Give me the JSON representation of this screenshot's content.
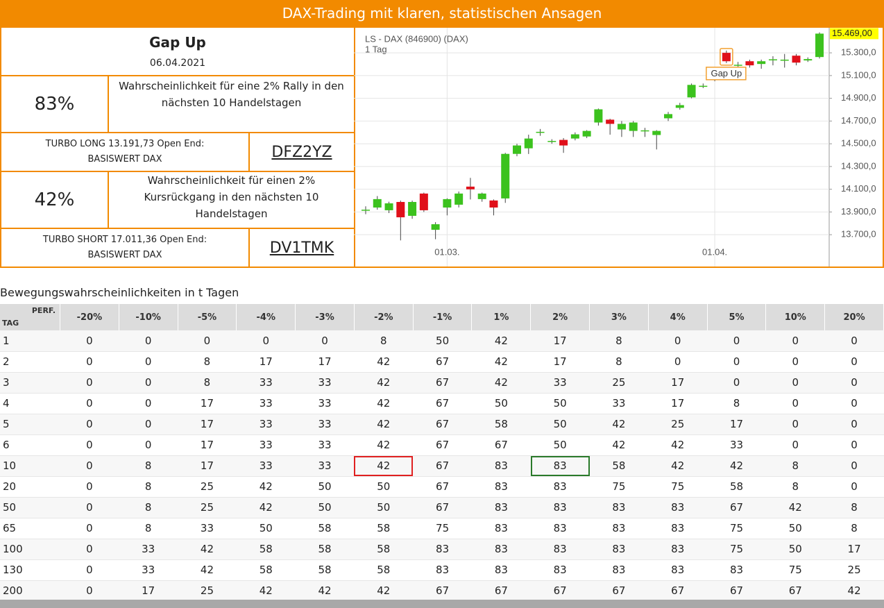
{
  "header": {
    "title": "DAX-Trading mit klaren, statistischen Ansagen"
  },
  "signal": {
    "title": "Gap Up",
    "date": "06.04.2021"
  },
  "long": {
    "percent": "83%",
    "text": "Wahrscheinlichkeit für eine 2% Rally in den nächsten 10 Handelstagen",
    "product": "TURBO LONG 13.191,73 Open End:",
    "underlying": "BASISWERT DAX",
    "code": "DFZ2YZ"
  },
  "short": {
    "percent": "42%",
    "text": "Wahrscheinlichkeit für einen 2% Kursrückgang in den nächsten 10 Handelstagen",
    "product": "TURBO SHORT 17.011,36 Open End:",
    "underlying": "BASISWERT DAX",
    "code": "DV1TMK"
  },
  "chart_data": {
    "type": "candlestick",
    "title": "LS - DAX (846900) (DAX)",
    "subtitle": "1 Tag",
    "categories": [
      null,
      null,
      null,
      null,
      null,
      null,
      null,
      "01.03.",
      null,
      null,
      null,
      null,
      null,
      null,
      null,
      null,
      null,
      null,
      null,
      null,
      null,
      null,
      null,
      null,
      null,
      null,
      null,
      null,
      null,
      null,
      "01.04.",
      null,
      null,
      null,
      null,
      null,
      null,
      null,
      null,
      null
    ],
    "open": [
      13915,
      13939,
      13915,
      13988,
      13866,
      14062,
      13743,
      13939,
      13964,
      14123,
      14013,
      14001,
      14019,
      14411,
      14460,
      14601,
      14520,
      14534,
      14546,
      14564,
      14687,
      14712,
      14626,
      14613,
      14613,
      14577,
      14724,
      14816,
      14908,
      15006,
      15067,
      15300,
      15190,
      15226,
      15202,
      15239,
      15239,
      15275,
      15233,
      15263
    ],
    "high": [
      13950,
      14040,
      13990,
      14000,
      14000,
      14070,
      13810,
      14020,
      14080,
      14200,
      14070,
      14010,
      14420,
      14500,
      14580,
      14630,
      14540,
      14550,
      14600,
      14620,
      14810,
      14720,
      14700,
      14700,
      14640,
      14620,
      14780,
      14860,
      15030,
      15030,
      15130,
      15320,
      15220,
      15240,
      15240,
      15270,
      15290,
      15290,
      15260,
      15480
    ],
    "low": [
      13880,
      13920,
      13890,
      13650,
      13840,
      13900,
      13660,
      13870,
      13940,
      14010,
      13990,
      13870,
      13980,
      14390,
      14410,
      14570,
      14500,
      14420,
      14530,
      14550,
      14660,
      14580,
      14560,
      14560,
      14560,
      14450,
      14700,
      14800,
      14900,
      14990,
      15050,
      15210,
      15160,
      15170,
      15160,
      15190,
      15170,
      15190,
      15220,
      15250
    ],
    "close": [
      13920,
      14013,
      13976,
      13853,
      13988,
      13915,
      13792,
      14013,
      14062,
      14099,
      14062,
      13939,
      14411,
      14485,
      14546,
      14605,
      14525,
      14485,
      14583,
      14613,
      14803,
      14675,
      14675,
      14687,
      14618,
      14613,
      14761,
      14840,
      15018,
      15010,
      15104,
      15226,
      15195,
      15190,
      15226,
      15243,
      15240,
      15214,
      15245,
      15469
    ],
    "up_color": "#3cc21e",
    "down_color": "#e0101a",
    "ylim": [
      13420,
      15490
    ],
    "yticks": [
      {
        "value": 13700,
        "label": "13.700,0"
      },
      {
        "value": 13900,
        "label": "13.900,0"
      },
      {
        "value": 14100,
        "label": "14.100,0"
      },
      {
        "value": 14300,
        "label": "14.300,0"
      },
      {
        "value": 14500,
        "label": "14.500,0"
      },
      {
        "value": 14700,
        "label": "14.700,0"
      },
      {
        "value": 14900,
        "label": "14.900,0"
      },
      {
        "value": 15100,
        "label": "15.100,0"
      },
      {
        "value": 15300,
        "label": "15.300,0"
      }
    ],
    "grid": true,
    "annotation": {
      "index": 31,
      "label": "Gap Up"
    },
    "last_label": "15.469,00"
  },
  "table": {
    "title": "Bewegungswahrscheinlichkeiten in t Tagen",
    "corner_top": "PERF.",
    "corner_bottom": "TAG",
    "columns": [
      "-20%",
      "-10%",
      "-5%",
      "-4%",
      "-3%",
      "-2%",
      "-1%",
      "1%",
      "2%",
      "3%",
      "4%",
      "5%",
      "10%",
      "20%"
    ],
    "rows": [
      {
        "label": "1",
        "values": [
          0,
          0,
          0,
          0,
          0,
          8,
          50,
          42,
          17,
          8,
          0,
          0,
          0,
          0
        ]
      },
      {
        "label": "2",
        "values": [
          0,
          0,
          8,
          17,
          17,
          42,
          67,
          42,
          17,
          8,
          0,
          0,
          0,
          0
        ]
      },
      {
        "label": "3",
        "values": [
          0,
          0,
          8,
          33,
          33,
          42,
          67,
          42,
          33,
          25,
          17,
          0,
          0,
          0
        ]
      },
      {
        "label": "4",
        "values": [
          0,
          0,
          17,
          33,
          33,
          42,
          67,
          50,
          50,
          33,
          17,
          8,
          0,
          0
        ]
      },
      {
        "label": "5",
        "values": [
          0,
          0,
          17,
          33,
          33,
          42,
          67,
          58,
          50,
          42,
          25,
          17,
          0,
          0
        ]
      },
      {
        "label": "6",
        "values": [
          0,
          0,
          17,
          33,
          33,
          42,
          67,
          67,
          50,
          42,
          42,
          33,
          0,
          0
        ]
      },
      {
        "label": "10",
        "values": [
          0,
          8,
          17,
          33,
          33,
          42,
          67,
          83,
          83,
          58,
          42,
          42,
          8,
          0
        ]
      },
      {
        "label": "20",
        "values": [
          0,
          8,
          25,
          42,
          50,
          50,
          67,
          83,
          83,
          75,
          75,
          58,
          8,
          0
        ]
      },
      {
        "label": "50",
        "values": [
          0,
          8,
          25,
          42,
          50,
          50,
          67,
          83,
          83,
          83,
          83,
          67,
          42,
          8
        ]
      },
      {
        "label": "65",
        "values": [
          0,
          8,
          33,
          50,
          58,
          58,
          75,
          83,
          83,
          83,
          83,
          75,
          50,
          8
        ]
      },
      {
        "label": "100",
        "values": [
          0,
          33,
          42,
          58,
          58,
          58,
          83,
          83,
          83,
          83,
          83,
          75,
          50,
          17
        ]
      },
      {
        "label": "130",
        "values": [
          0,
          33,
          42,
          58,
          58,
          58,
          83,
          83,
          83,
          83,
          83,
          83,
          75,
          25
        ]
      },
      {
        "label": "200",
        "values": [
          0,
          17,
          25,
          42,
          42,
          42,
          67,
          67,
          67,
          67,
          67,
          67,
          67,
          42
        ]
      }
    ],
    "highlights": [
      {
        "row": 6,
        "col": 5,
        "color": "#e02020"
      },
      {
        "row": 6,
        "col": 8,
        "color": "#2a7a2a"
      }
    ]
  }
}
